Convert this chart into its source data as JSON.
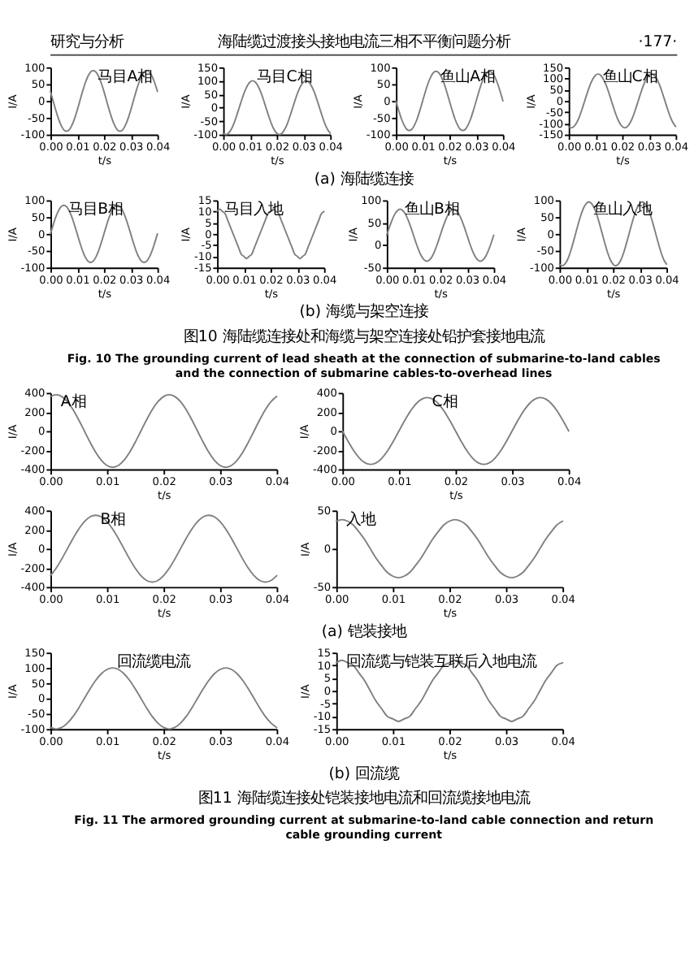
{
  "chart_data": [
    {
      "type": "line",
      "xlabel": "t/s",
      "ylabel": "I/A",
      "marker": "none",
      "line_style": "solid",
      "xlim": [
        0,
        0.04
      ],
      "ylim": [
        -100,
        100
      ],
      "xticks": [
        {
          "value": 0,
          "label": "0.00"
        },
        {
          "value": 0.01,
          "label": "0.01"
        },
        {
          "value": 0.02,
          "label": "0.02"
        },
        {
          "value": 0.03,
          "label": "0.03"
        },
        {
          "value": 0.04,
          "label": "0.04"
        }
      ],
      "yticks": [
        -100,
        -50,
        0,
        50,
        100
      ],
      "annotations": [
        "研究与分析",
        "海陆缆过渡接头接地电流三相不平衡问题分析",
        "·177·"
      ],
      "x": [
        0,
        0.001,
        0.002,
        0.003,
        0.004,
        0.005,
        0.006,
        0.007,
        0.008,
        0.009,
        0.01,
        0.011,
        0.012,
        0.013,
        0.014,
        0.015,
        0.016,
        0.017,
        0.018,
        0.019,
        0.02,
        0.021,
        0.022,
        0.023,
        0.024,
        0.025,
        0.026,
        0.027,
        0.028,
        0.029,
        0.03,
        0.031,
        0.032,
        0.033,
        0.034,
        0.035,
        0.036,
        0.037,
        0.038,
        0.039,
        0.04
      ],
      "series": [
        {
          "name": "马目A相",
          "color": "#7f7f7f",
          "values": [
            28,
            0,
            -28,
            -53,
            -73,
            -86,
            -90,
            -86,
            -73,
            -53,
            -28,
            0,
            28,
            53,
            73,
            86,
            90,
            86,
            73,
            53,
            28,
            0,
            -28,
            -53,
            -73,
            -86,
            -90,
            -86,
            -73,
            -53,
            -28,
            0,
            28,
            53,
            73,
            86,
            90,
            86,
            73,
            53,
            28
          ]
        }
      ]
    },
    {
      "type": "line",
      "xlabel": "t/s",
      "ylabel": "I/A",
      "marker": "none",
      "line_style": "solid",
      "xlim": [
        0,
        0.04
      ],
      "ylim": [
        -100,
        150
      ],
      "xticks": [
        {
          "value": 0,
          "label": "0.00"
        },
        {
          "value": 0.01,
          "label": "0.01"
        },
        {
          "value": 0.02,
          "label": "0.02"
        },
        {
          "value": 0.03,
          "label": "0.03"
        },
        {
          "value": 0.04,
          "label": "0.04"
        }
      ],
      "yticks": [
        -100,
        -50,
        0,
        50,
        100,
        150
      ],
      "x": [
        0,
        0.001,
        0.002,
        0.003,
        0.004,
        0.005,
        0.006,
        0.007,
        0.008,
        0.009,
        0.01,
        0.011,
        0.012,
        0.013,
        0.014,
        0.015,
        0.016,
        0.017,
        0.018,
        0.019,
        0.02,
        0.021,
        0.022,
        0.023,
        0.024,
        0.025,
        0.026,
        0.027,
        0.028,
        0.029,
        0.03,
        0.031,
        0.032,
        0.033,
        0.034,
        0.035,
        0.036,
        0.037,
        0.038,
        0.039,
        0.04
      ],
      "series": [
        {
          "name": "马目C相",
          "color": "#7f7f7f",
          "values": [
            -95,
            -100,
            -95,
            -81,
            -59,
            -31,
            0,
            31,
            59,
            81,
            95,
            100,
            95,
            81,
            59,
            31,
            0,
            -31,
            -59,
            -81,
            -95,
            -100,
            -95,
            -81,
            -59,
            -31,
            0,
            31,
            59,
            81,
            95,
            100,
            95,
            81,
            59,
            31,
            0,
            -31,
            -59,
            -81,
            -95
          ]
        }
      ]
    },
    {
      "type": "line",
      "xlabel": "t/s",
      "ylabel": "I/A",
      "marker": "none",
      "line_style": "solid",
      "xlim": [
        0,
        0.04
      ],
      "ylim": [
        -100,
        100
      ],
      "xticks": [
        {
          "value": 0,
          "label": "0.00"
        },
        {
          "value": 0.01,
          "label": "0.01"
        },
        {
          "value": 0.02,
          "label": "0.02"
        },
        {
          "value": 0.03,
          "label": "0.03"
        },
        {
          "value": 0.04,
          "label": "0.04"
        }
      ],
      "yticks": [
        -100,
        -50,
        0,
        50,
        100
      ],
      "x": [
        0,
        0.001,
        0.002,
        0.003,
        0.004,
        0.005,
        0.006,
        0.007,
        0.008,
        0.009,
        0.01,
        0.011,
        0.012,
        0.013,
        0.014,
        0.015,
        0.016,
        0.017,
        0.018,
        0.019,
        0.02,
        0.021,
        0.022,
        0.023,
        0.024,
        0.025,
        0.026,
        0.027,
        0.028,
        0.029,
        0.03,
        0.031,
        0.032,
        0.033,
        0.034,
        0.035,
        0.036,
        0.037,
        0.038,
        0.039,
        0.04
      ],
      "series": [
        {
          "name": "鱼山A相",
          "color": "#7f7f7f",
          "values": [
            0,
            -27,
            -52,
            -71,
            -84,
            -88,
            -84,
            -71,
            -52,
            -27,
            0,
            27,
            52,
            71,
            84,
            88,
            84,
            71,
            52,
            27,
            0,
            -27,
            -52,
            -71,
            -84,
            -88,
            -84,
            -71,
            -52,
            -27,
            0,
            27,
            52,
            71,
            84,
            88,
            84,
            71,
            52,
            27,
            0
          ]
        }
      ]
    },
    {
      "type": "line",
      "xlabel": "t/s",
      "ylabel": "I/A",
      "marker": "none",
      "line_style": "solid",
      "xlim": [
        0,
        0.04
      ],
      "ylim": [
        -150,
        150
      ],
      "xticks": [
        {
          "value": 0,
          "label": "0.00"
        },
        {
          "value": 0.01,
          "label": "0.01"
        },
        {
          "value": 0.02,
          "label": "0.02"
        },
        {
          "value": 0.03,
          "label": "0.03"
        },
        {
          "value": 0.04,
          "label": "0.04"
        }
      ],
      "yticks": [
        -150,
        -100,
        -50,
        0,
        50,
        100,
        150
      ],
      "annotations": [
        "(a) 海陆缆连接"
      ],
      "x": [
        0,
        0.001,
        0.002,
        0.003,
        0.004,
        0.005,
        0.006,
        0.007,
        0.008,
        0.009,
        0.01,
        0.011,
        0.012,
        0.013,
        0.014,
        0.015,
        0.016,
        0.017,
        0.018,
        0.019,
        0.02,
        0.021,
        0.022,
        0.023,
        0.024,
        0.025,
        0.026,
        0.027,
        0.028,
        0.029,
        0.03,
        0.031,
        0.032,
        0.033,
        0.034,
        0.035,
        0.036,
        0.037,
        0.038,
        0.039,
        0.04
      ],
      "series": [
        {
          "name": "鱼山C相",
          "color": "#7f7f7f",
          "values": [
            -114,
            -120,
            -114,
            -97,
            -71,
            -37,
            0,
            37,
            71,
            97,
            114,
            120,
            114,
            97,
            71,
            37,
            0,
            -37,
            -71,
            -97,
            -114,
            -120,
            -114,
            -97,
            -71,
            -37,
            0,
            37,
            71,
            97,
            114,
            120,
            114,
            97,
            71,
            37,
            0,
            -37,
            -71,
            -97,
            -114
          ]
        }
      ]
    },
    {
      "type": "line",
      "xlabel": "t/s",
      "ylabel": "I/A",
      "marker": "none",
      "line_style": "solid",
      "xlim": [
        0,
        0.04
      ],
      "ylim": [
        -100,
        100
      ],
      "xticks": [
        {
          "value": 0,
          "label": "0.00"
        },
        {
          "value": 0.01,
          "label": "0.01"
        },
        {
          "value": 0.02,
          "label": "0.02"
        },
        {
          "value": 0.03,
          "label": "0.03"
        },
        {
          "value": 0.04,
          "label": "0.04"
        }
      ],
      "yticks": [
        -100,
        -50,
        0,
        50,
        100
      ],
      "x": [
        0,
        0.001,
        0.002,
        0.003,
        0.004,
        0.005,
        0.006,
        0.007,
        0.008,
        0.009,
        0.01,
        0.011,
        0.012,
        0.013,
        0.014,
        0.015,
        0.016,
        0.017,
        0.018,
        0.019,
        0.02,
        0.021,
        0.022,
        0.023,
        0.024,
        0.025,
        0.026,
        0.027,
        0.028,
        0.029,
        0.03,
        0.031,
        0.032,
        0.033,
        0.034,
        0.035,
        0.036,
        0.037,
        0.038,
        0.039,
        0.04
      ],
      "series": [
        {
          "name": "马目B相",
          "color": "#7f7f7f",
          "values": [
            0,
            26,
            50,
            69,
            81,
            85,
            81,
            69,
            50,
            26,
            0,
            -26,
            -50,
            -69,
            -81,
            -85,
            -81,
            -69,
            -50,
            -26,
            0,
            26,
            50,
            69,
            81,
            85,
            81,
            69,
            50,
            26,
            0,
            -26,
            -50,
            -69,
            -81,
            -85,
            -81,
            -69,
            -50,
            -26,
            0
          ]
        }
      ]
    },
    {
      "type": "line",
      "xlabel": "t/s",
      "ylabel": "I/A",
      "marker": "none",
      "line_style": "solid",
      "xlim": [
        0,
        0.04
      ],
      "ylim": [
        -15,
        15
      ],
      "xticks": [
        {
          "value": 0,
          "label": "0.00"
        },
        {
          "value": 0.01,
          "label": "0.01"
        },
        {
          "value": 0.02,
          "label": "0.02"
        },
        {
          "value": 0.03,
          "label": "0.03"
        },
        {
          "value": 0.04,
          "label": "0.04"
        }
      ],
      "yticks": [
        -15,
        -10,
        -5,
        0,
        5,
        10,
        15
      ],
      "x": [
        0,
        0.001,
        0.002,
        0.003,
        0.004,
        0.005,
        0.006,
        0.007,
        0.008,
        0.009,
        0.01,
        0.011,
        0.012,
        0.013,
        0.014,
        0.015,
        0.016,
        0.017,
        0.018,
        0.019,
        0.02,
        0.021,
        0.022,
        0.023,
        0.024,
        0.025,
        0.026,
        0.027,
        0.028,
        0.029,
        0.03,
        0.031,
        0.032,
        0.033,
        0.034,
        0.035,
        0.036,
        0.037,
        0.038,
        0.039,
        0.04
      ],
      "series": [
        {
          "name": "马目入地",
          "color": "#7f7f7f",
          "values": [
            10,
            11,
            10,
            9,
            6,
            3,
            0,
            -3,
            -6,
            -9,
            -10,
            -11,
            -10,
            -9,
            -6,
            -3,
            0,
            3,
            6,
            9,
            10,
            11,
            10,
            9,
            6,
            3,
            0,
            -3,
            -6,
            -9,
            -10,
            -11,
            -10,
            -9,
            -6,
            -3,
            0,
            3,
            6,
            9,
            10
          ]
        }
      ]
    },
    {
      "type": "line",
      "xlabel": "t/s",
      "ylabel": "I/A",
      "marker": "none",
      "line_style": "solid",
      "xlim": [
        0,
        0.04
      ],
      "ylim": [
        -50,
        100
      ],
      "xticks": [
        {
          "value": 0,
          "label": "0.00"
        },
        {
          "value": 0.01,
          "label": "0.01"
        },
        {
          "value": 0.02,
          "label": "0.02"
        },
        {
          "value": 0.03,
          "label": "0.03"
        },
        {
          "value": 0.04,
          "label": "0.04"
        }
      ],
      "yticks": [
        -50,
        0,
        50,
        100
      ],
      "x": [
        0,
        0.001,
        0.002,
        0.003,
        0.004,
        0.005,
        0.006,
        0.007,
        0.008,
        0.009,
        0.01,
        0.011,
        0.012,
        0.013,
        0.014,
        0.015,
        0.016,
        0.017,
        0.018,
        0.019,
        0.02,
        0.021,
        0.022,
        0.023,
        0.024,
        0.025,
        0.026,
        0.027,
        0.028,
        0.029,
        0.03,
        0.031,
        0.032,
        0.033,
        0.034,
        0.035,
        0.036,
        0.037,
        0.038,
        0.039,
        0.04
      ],
      "series": [
        {
          "name": "鱼山B相",
          "color": "#7f7f7f",
          "values": [
            22,
            40,
            56,
            69,
            77,
            80,
            77,
            69,
            56,
            40,
            22,
            4,
            -12,
            -25,
            -33,
            -36,
            -33,
            -25,
            -12,
            4,
            22,
            40,
            56,
            69,
            77,
            80,
            77,
            69,
            56,
            40,
            22,
            4,
            -12,
            -25,
            -33,
            -36,
            -33,
            -25,
            -12,
            4,
            22
          ]
        }
      ]
    },
    {
      "type": "line",
      "xlabel": "t/s",
      "ylabel": "I/A",
      "marker": "none",
      "line_style": "solid",
      "xlim": [
        0,
        0.04
      ],
      "ylim": [
        -100,
        100
      ],
      "xticks": [
        {
          "value": 0,
          "label": "0.00"
        },
        {
          "value": 0.01,
          "label": "0.01"
        },
        {
          "value": 0.02,
          "label": "0.02"
        },
        {
          "value": 0.03,
          "label": "0.03"
        },
        {
          "value": 0.04,
          "label": "0.04"
        }
      ],
      "yticks": [
        -100,
        -50,
        0,
        50,
        100
      ],
      "annotations": [
        "(b) 海缆与架空连接",
        "图10  海陆缆连接处和海缆与架空连接处铅护套接地电流",
        "Fig. 10  The grounding current of lead sheath at the connection of submarine-to-land cables and the connection of submarine cables-to-overhead lines"
      ],
      "x": [
        0,
        0.001,
        0.002,
        0.003,
        0.004,
        0.005,
        0.006,
        0.007,
        0.008,
        0.009,
        0.01,
        0.011,
        0.012,
        0.013,
        0.014,
        0.015,
        0.016,
        0.017,
        0.018,
        0.019,
        0.02,
        0.021,
        0.022,
        0.023,
        0.024,
        0.025,
        0.026,
        0.027,
        0.028,
        0.029,
        0.03,
        0.031,
        0.032,
        0.033,
        0.034,
        0.035,
        0.036,
        0.037,
        0.038,
        0.039,
        0.04
      ],
      "series": [
        {
          "name": "鱼山入地",
          "color": "#7f7f7f",
          "values": [
            -90,
            -95,
            -90,
            -77,
            -56,
            -29,
            0,
            29,
            56,
            77,
            90,
            95,
            90,
            77,
            56,
            29,
            0,
            -29,
            -56,
            -77,
            -90,
            -95,
            -90,
            -77,
            -56,
            -29,
            0,
            29,
            56,
            77,
            90,
            95,
            90,
            77,
            56,
            29,
            0,
            -29,
            -56,
            -77,
            -90
          ]
        }
      ]
    },
    {
      "type": "line",
      "xlabel": "t/s",
      "ylabel": "I/A",
      "marker": "none",
      "line_style": "solid",
      "xlim": [
        0,
        0.04
      ],
      "ylim": [
        -400,
        400
      ],
      "xticks": [
        {
          "value": 0,
          "label": "0.00"
        },
        {
          "value": 0.01,
          "label": "0.01"
        },
        {
          "value": 0.02,
          "label": "0.02"
        },
        {
          "value": 0.03,
          "label": "0.03"
        },
        {
          "value": 0.04,
          "label": "0.04"
        }
      ],
      "yticks": [
        -400,
        -200,
        0,
        200,
        400
      ],
      "x": [
        0,
        0.001,
        0.002,
        0.003,
        0.004,
        0.005,
        0.006,
        0.007,
        0.008,
        0.009,
        0.01,
        0.011,
        0.012,
        0.013,
        0.014,
        0.015,
        0.016,
        0.017,
        0.018,
        0.019,
        0.02,
        0.021,
        0.022,
        0.023,
        0.024,
        0.025,
        0.026,
        0.027,
        0.028,
        0.029,
        0.03,
        0.031,
        0.032,
        0.033,
        0.034,
        0.035,
        0.036,
        0.037,
        0.038,
        0.039,
        0.04
      ],
      "series": [
        {
          "name": "A相",
          "color": "#7f7f7f",
          "values": [
            361,
            380,
            361,
            307,
            223,
            117,
            0,
            -117,
            -223,
            -307,
            -361,
            -380,
            -361,
            -307,
            -223,
            -117,
            0,
            117,
            223,
            307,
            361,
            380,
            361,
            307,
            223,
            117,
            0,
            -117,
            -223,
            -307,
            -361,
            -380,
            -361,
            -307,
            -223,
            -117,
            0,
            117,
            223,
            307,
            361
          ]
        }
      ]
    },
    {
      "type": "line",
      "xlabel": "t/s",
      "ylabel": "I/A",
      "marker": "none",
      "line_style": "solid",
      "xlim": [
        0,
        0.04
      ],
      "ylim": [
        -400,
        400
      ],
      "xticks": [
        {
          "value": 0,
          "label": "0.00"
        },
        {
          "value": 0.01,
          "label": "0.01"
        },
        {
          "value": 0.02,
          "label": "0.02"
        },
        {
          "value": 0.03,
          "label": "0.03"
        },
        {
          "value": 0.04,
          "label": "0.04"
        }
      ],
      "yticks": [
        -400,
        -200,
        0,
        200,
        400
      ],
      "x": [
        0,
        0.001,
        0.002,
        0.003,
        0.004,
        0.005,
        0.006,
        0.007,
        0.008,
        0.009,
        0.01,
        0.011,
        0.012,
        0.013,
        0.014,
        0.015,
        0.016,
        0.017,
        0.018,
        0.019,
        0.02,
        0.021,
        0.022,
        0.023,
        0.024,
        0.025,
        0.026,
        0.027,
        0.028,
        0.029,
        0.03,
        0.031,
        0.032,
        0.033,
        0.034,
        0.035,
        0.036,
        0.037,
        0.038,
        0.039,
        0.04
      ],
      "series": [
        {
          "name": "C相",
          "color": "#7f7f7f",
          "values": [
            0,
            -108,
            -206,
            -283,
            -333,
            -350,
            -333,
            -283,
            -206,
            -108,
            0,
            108,
            206,
            283,
            333,
            350,
            333,
            283,
            206,
            108,
            0,
            -108,
            -206,
            -283,
            -333,
            -350,
            -333,
            -283,
            -206,
            -108,
            0,
            108,
            206,
            283,
            333,
            350,
            333,
            283,
            206,
            108,
            0
          ]
        }
      ]
    },
    {
      "type": "line",
      "xlabel": "t/s",
      "ylabel": "I/A",
      "marker": "none",
      "line_style": "solid",
      "xlim": [
        0,
        0.04
      ],
      "ylim": [
        -400,
        400
      ],
      "xticks": [
        {
          "value": 0,
          "label": "0.00"
        },
        {
          "value": 0.01,
          "label": "0.01"
        },
        {
          "value": 0.02,
          "label": "0.02"
        },
        {
          "value": 0.03,
          "label": "0.03"
        },
        {
          "value": 0.04,
          "label": "0.04"
        }
      ],
      "yticks": [
        -400,
        -200,
        0,
        200,
        400
      ],
      "x": [
        0,
        0.001,
        0.002,
        0.003,
        0.004,
        0.005,
        0.006,
        0.007,
        0.008,
        0.009,
        0.01,
        0.011,
        0.012,
        0.013,
        0.014,
        0.015,
        0.016,
        0.017,
        0.018,
        0.019,
        0.02,
        0.021,
        0.022,
        0.023,
        0.024,
        0.025,
        0.026,
        0.027,
        0.028,
        0.029,
        0.03,
        0.031,
        0.032,
        0.033,
        0.034,
        0.035,
        0.036,
        0.037,
        0.038,
        0.039,
        0.04
      ],
      "series": [
        {
          "name": "B相",
          "color": "#7f7f7f",
          "values": [
            -283,
            -206,
            -108,
            0,
            108,
            206,
            283,
            333,
            350,
            333,
            283,
            206,
            108,
            0,
            -108,
            -206,
            -283,
            -333,
            -350,
            -333,
            -283,
            -206,
            -108,
            0,
            108,
            206,
            283,
            333,
            350,
            333,
            283,
            206,
            108,
            0,
            -108,
            -206,
            -283,
            -333,
            -350,
            -333,
            -283
          ]
        }
      ]
    },
    {
      "type": "line",
      "xlabel": "t/s",
      "ylabel": "I/A",
      "marker": "none",
      "line_style": "solid",
      "xlim": [
        0,
        0.04
      ],
      "ylim": [
        -50,
        50
      ],
      "xticks": [
        {
          "value": 0,
          "label": "0.00"
        },
        {
          "value": 0.01,
          "label": "0.01"
        },
        {
          "value": 0.02,
          "label": "0.02"
        },
        {
          "value": 0.03,
          "label": "0.03"
        },
        {
          "value": 0.04,
          "label": "0.04"
        }
      ],
      "yticks": [
        -50,
        0,
        50
      ],
      "annotations": [
        "(a) 铠装接地"
      ],
      "x": [
        0,
        0.001,
        0.002,
        0.003,
        0.004,
        0.005,
        0.006,
        0.007,
        0.008,
        0.009,
        0.01,
        0.011,
        0.012,
        0.013,
        0.014,
        0.015,
        0.016,
        0.017,
        0.018,
        0.019,
        0.02,
        0.021,
        0.022,
        0.023,
        0.024,
        0.025,
        0.026,
        0.027,
        0.028,
        0.029,
        0.03,
        0.031,
        0.032,
        0.033,
        0.034,
        0.035,
        0.036,
        0.037,
        0.038,
        0.039,
        0.04
      ],
      "series": [
        {
          "name": "入地",
          "color": "#7f7f7f",
          "values": [
            36,
            38,
            36,
            31,
            22,
            12,
            0,
            -12,
            -22,
            -31,
            -36,
            -38,
            -36,
            -31,
            -22,
            -12,
            0,
            12,
            22,
            31,
            36,
            38,
            36,
            31,
            22,
            12,
            0,
            -12,
            -22,
            -31,
            -36,
            -38,
            -36,
            -31,
            -22,
            -12,
            0,
            12,
            22,
            31,
            36
          ]
        }
      ]
    },
    {
      "type": "line",
      "xlabel": "t/s",
      "ylabel": "I/A",
      "marker": "none",
      "line_style": "solid",
      "xlim": [
        0,
        0.04
      ],
      "ylim": [
        -100,
        150
      ],
      "xticks": [
        {
          "value": 0,
          "label": "0.00"
        },
        {
          "value": 0.01,
          "label": "0.01"
        },
        {
          "value": 0.02,
          "label": "0.02"
        },
        {
          "value": 0.03,
          "label": "0.03"
        },
        {
          "value": 0.04,
          "label": "0.04"
        }
      ],
      "yticks": [
        -100,
        -50,
        0,
        50,
        100,
        150
      ],
      "x": [
        0,
        0.001,
        0.002,
        0.003,
        0.004,
        0.005,
        0.006,
        0.007,
        0.008,
        0.009,
        0.01,
        0.011,
        0.012,
        0.013,
        0.014,
        0.015,
        0.016,
        0.017,
        0.018,
        0.019,
        0.02,
        0.021,
        0.022,
        0.023,
        0.024,
        0.025,
        0.026,
        0.027,
        0.028,
        0.029,
        0.03,
        0.031,
        0.032,
        0.033,
        0.034,
        0.035,
        0.036,
        0.037,
        0.038,
        0.039,
        0.04
      ],
      "series": [
        {
          "name": "回流缆电流",
          "color": "#7f7f7f",
          "values": [
            -95,
            -100,
            -95,
            -81,
            -59,
            -31,
            0,
            31,
            59,
            81,
            95,
            100,
            95,
            81,
            59,
            31,
            0,
            -31,
            -59,
            -81,
            -95,
            -100,
            -95,
            -81,
            -59,
            -31,
            0,
            31,
            59,
            81,
            95,
            100,
            95,
            81,
            59,
            31,
            0,
            -31,
            -59,
            -81,
            -95
          ]
        }
      ]
    },
    {
      "type": "line",
      "xlabel": "t/s",
      "ylabel": "I/A",
      "marker": "none",
      "line_style": "solid",
      "xlim": [
        0,
        0.04
      ],
      "ylim": [
        -15,
        15
      ],
      "xticks": [
        {
          "value": 0,
          "label": "0.00"
        },
        {
          "value": 0.01,
          "label": "0.01"
        },
        {
          "value": 0.02,
          "label": "0.02"
        },
        {
          "value": 0.03,
          "label": "0.03"
        },
        {
          "value": 0.04,
          "label": "0.04"
        }
      ],
      "yticks": [
        -15,
        -10,
        -5,
        0,
        5,
        10,
        15
      ],
      "annotations": [
        "(b) 回流缆",
        "图11  海陆缆连接处铠装接地电流和回流缆接地电流",
        "Fig. 11  The armored grounding current at submarine-to-land cable connection and return cable grounding current"
      ],
      "x": [
        0,
        0.001,
        0.002,
        0.003,
        0.004,
        0.005,
        0.006,
        0.007,
        0.008,
        0.009,
        0.01,
        0.011,
        0.012,
        0.013,
        0.014,
        0.015,
        0.016,
        0.017,
        0.018,
        0.019,
        0.02,
        0.021,
        0.022,
        0.023,
        0.024,
        0.025,
        0.026,
        0.027,
        0.028,
        0.029,
        0.03,
        0.031,
        0.032,
        0.033,
        0.034,
        0.035,
        0.036,
        0.037,
        0.038,
        0.039,
        0.04
      ],
      "series": [
        {
          "name": "回流缆与铠装互联后入地电流",
          "color": "#7f7f7f",
          "values": [
            11,
            12,
            11,
            10,
            7,
            4,
            0,
            -4,
            -7,
            -10,
            -11,
            -12,
            -11,
            -10,
            -7,
            -4,
            0,
            4,
            7,
            10,
            11,
            12,
            11,
            10,
            7,
            4,
            0,
            -4,
            -7,
            -10,
            -11,
            -12,
            -11,
            -10,
            -7,
            -4,
            0,
            4,
            7,
            10,
            11
          ]
        }
      ]
    }
  ]
}
